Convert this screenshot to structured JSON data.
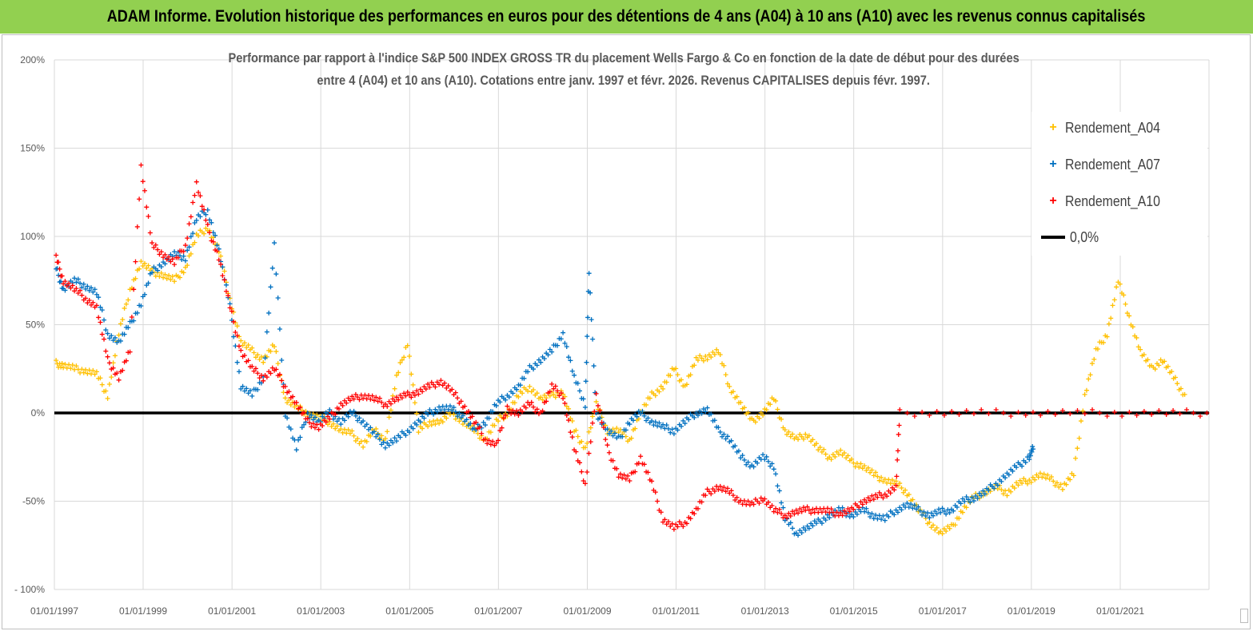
{
  "banner": {
    "title": "ADAM Informe. Evolution historique des performances en euros pour des détentions de 4 ans (A04) à 10 ans (A10) avec les revenus connus capitalisés"
  },
  "colors": {
    "banner_bg": "#92d050",
    "A04": "#ffc000",
    "A07": "#0070c0",
    "A10": "#ff0000",
    "zero_line": "#000000"
  },
  "chart_data": {
    "type": "scatter",
    "title_line1": "Performance par rapport à l'indice S&P 500 INDEX GROSS TR  du placement Wells Fargo & Co en fonction de la date de début pour des durées",
    "title_line2": "entre 4 (A04) et 10 ans (A10). Cotations entre janv. 1997 et févr. 2026. Revenus CAPITALISES depuis févr. 1997.",
    "xlabel": "",
    "ylabel": "",
    "x_range": [
      "1997-01-01",
      "2023-01-01"
    ],
    "ylim": [
      -100,
      200
    ],
    "y_ticks": [
      "200%",
      "150%",
      "100%",
      "50%",
      "0%",
      "-50%",
      "- 100%"
    ],
    "x_ticks": [
      "01/01/1997",
      "01/01/1999",
      "01/01/2001",
      "01/01/2003",
      "01/01/2005",
      "01/01/2007",
      "01/01/2009",
      "01/01/2011",
      "01/01/2013",
      "01/01/2015",
      "01/01/2017",
      "01/01/2019",
      "01/01/2021"
    ],
    "grid": true,
    "legend_position": "top-right",
    "series": [
      {
        "name": "Rendement_A04",
        "marker": "+",
        "points": [
          [
            "1997-01",
            28
          ],
          [
            "1997-03",
            27
          ],
          [
            "1997-06",
            25
          ],
          [
            "1997-09",
            24
          ],
          [
            "1997-12",
            22
          ],
          [
            "1998-03",
            10
          ],
          [
            "1998-06",
            45
          ],
          [
            "1998-09",
            70
          ],
          [
            "1998-12",
            85
          ],
          [
            "1999-03",
            80
          ],
          [
            "1999-06",
            78
          ],
          [
            "1999-09",
            75
          ],
          [
            "1999-12",
            82
          ],
          [
            "2000-03",
            100
          ],
          [
            "2000-06",
            105
          ],
          [
            "2000-09",
            92
          ],
          [
            "2000-12",
            65
          ],
          [
            "2001-03",
            40
          ],
          [
            "2001-06",
            35
          ],
          [
            "2001-09",
            30
          ],
          [
            "2001-12",
            38
          ],
          [
            "2002-03",
            8
          ],
          [
            "2002-06",
            3
          ],
          [
            "2002-09",
            0
          ],
          [
            "2002-12",
            -3
          ],
          [
            "2003-03",
            -5
          ],
          [
            "2003-06",
            -10
          ],
          [
            "2003-09",
            -12
          ],
          [
            "2003-12",
            -18
          ],
          [
            "2004-03",
            -10
          ],
          [
            "2004-06",
            -15
          ],
          [
            "2004-09",
            20
          ],
          [
            "2004-12",
            40
          ],
          [
            "2005-03",
            -10
          ],
          [
            "2005-06",
            -5
          ],
          [
            "2005-09",
            -5
          ],
          [
            "2005-12",
            0
          ],
          [
            "2006-03",
            -5
          ],
          [
            "2006-06",
            -10
          ],
          [
            "2006-09",
            -15
          ],
          [
            "2006-12",
            -5
          ],
          [
            "2007-03",
            0
          ],
          [
            "2007-06",
            10
          ],
          [
            "2007-09",
            15
          ],
          [
            "2007-12",
            8
          ],
          [
            "2008-03",
            10
          ],
          [
            "2008-06",
            12
          ],
          [
            "2008-09",
            -10
          ],
          [
            "2008-12",
            -20
          ],
          [
            "2009-03",
            5
          ],
          [
            "2009-06",
            -10
          ],
          [
            "2009-09",
            -10
          ],
          [
            "2009-12",
            -15
          ],
          [
            "2010-03",
            0
          ],
          [
            "2010-06",
            10
          ],
          [
            "2010-09",
            15
          ],
          [
            "2010-12",
            25
          ],
          [
            "2011-03",
            15
          ],
          [
            "2011-06",
            30
          ],
          [
            "2011-09",
            32
          ],
          [
            "2011-12",
            35
          ],
          [
            "2012-03",
            15
          ],
          [
            "2012-06",
            5
          ],
          [
            "2012-09",
            -5
          ],
          [
            "2012-12",
            0
          ],
          [
            "2013-03",
            8
          ],
          [
            "2013-06",
            -10
          ],
          [
            "2013-09",
            -15
          ],
          [
            "2013-12",
            -12
          ],
          [
            "2014-03",
            -20
          ],
          [
            "2014-06",
            -25
          ],
          [
            "2014-09",
            -22
          ],
          [
            "2014-12",
            -28
          ],
          [
            "2015-03",
            -30
          ],
          [
            "2015-06",
            -35
          ],
          [
            "2015-09",
            -38
          ],
          [
            "2015-12",
            -40
          ],
          [
            "2016-03",
            -45
          ],
          [
            "2016-06",
            -55
          ],
          [
            "2016-09",
            -62
          ],
          [
            "2016-12",
            -68
          ],
          [
            "2017-03",
            -65
          ],
          [
            "2017-06",
            -55
          ],
          [
            "2017-09",
            -48
          ],
          [
            "2017-12",
            -45
          ],
          [
            "2018-03",
            -42
          ],
          [
            "2018-06",
            -45
          ],
          [
            "2018-09",
            -40
          ],
          [
            "2018-12",
            -38
          ],
          [
            "2019-03",
            -35
          ],
          [
            "2019-06",
            -38
          ],
          [
            "2019-09",
            -42
          ],
          [
            "2019-12",
            -35
          ],
          [
            "2020-03",
            10
          ],
          [
            "2020-06",
            35
          ],
          [
            "2020-09",
            45
          ],
          [
            "2020-12",
            75
          ],
          [
            "2021-03",
            55
          ],
          [
            "2021-06",
            35
          ],
          [
            "2021-09",
            25
          ],
          [
            "2021-12",
            30
          ],
          [
            "2022-03",
            20
          ],
          [
            "2022-06",
            10
          ]
        ]
      },
      {
        "name": "Rendement_A07",
        "marker": "+",
        "points": [
          [
            "1997-01",
            82
          ],
          [
            "1997-03",
            70
          ],
          [
            "1997-06",
            75
          ],
          [
            "1997-09",
            72
          ],
          [
            "1997-12",
            68
          ],
          [
            "1998-03",
            45
          ],
          [
            "1998-06",
            40
          ],
          [
            "1998-09",
            50
          ],
          [
            "1998-12",
            62
          ],
          [
            "1999-03",
            80
          ],
          [
            "1999-06",
            85
          ],
          [
            "1999-09",
            90
          ],
          [
            "1999-12",
            88
          ],
          [
            "2000-03",
            110
          ],
          [
            "2000-06",
            115
          ],
          [
            "2000-09",
            92
          ],
          [
            "2000-12",
            60
          ],
          [
            "2001-03",
            15
          ],
          [
            "2001-06",
            10
          ],
          [
            "2001-09",
            20
          ],
          [
            "2001-12",
            95
          ],
          [
            "2002-03",
            0
          ],
          [
            "2002-06",
            -20
          ],
          [
            "2002-09",
            0
          ],
          [
            "2002-12",
            -5
          ],
          [
            "2003-03",
            0
          ],
          [
            "2003-06",
            -5
          ],
          [
            "2003-09",
            0
          ],
          [
            "2003-12",
            -5
          ],
          [
            "2004-03",
            -12
          ],
          [
            "2004-06",
            -18
          ],
          [
            "2004-09",
            -15
          ],
          [
            "2004-12",
            -10
          ],
          [
            "2005-03",
            -5
          ],
          [
            "2005-06",
            0
          ],
          [
            "2005-09",
            3
          ],
          [
            "2005-12",
            2
          ],
          [
            "2006-03",
            -2
          ],
          [
            "2006-06",
            -10
          ],
          [
            "2006-09",
            -5
          ],
          [
            "2006-12",
            5
          ],
          [
            "2007-03",
            10
          ],
          [
            "2007-06",
            15
          ],
          [
            "2007-09",
            25
          ],
          [
            "2007-12",
            30
          ],
          [
            "2008-03",
            35
          ],
          [
            "2008-06",
            45
          ],
          [
            "2008-09",
            20
          ],
          [
            "2008-12",
            5
          ],
          [
            "2009-01",
            80
          ],
          [
            "2009-03",
            0
          ],
          [
            "2009-06",
            -10
          ],
          [
            "2009-09",
            -15
          ],
          [
            "2009-12",
            -5
          ],
          [
            "2010-03",
            0
          ],
          [
            "2010-06",
            -5
          ],
          [
            "2010-09",
            -8
          ],
          [
            "2010-12",
            -10
          ],
          [
            "2011-03",
            -5
          ],
          [
            "2011-06",
            0
          ],
          [
            "2011-09",
            2
          ],
          [
            "2011-12",
            -10
          ],
          [
            "2012-03",
            -15
          ],
          [
            "2012-06",
            -25
          ],
          [
            "2012-09",
            -30
          ],
          [
            "2012-12",
            -25
          ],
          [
            "2013-03",
            -30
          ],
          [
            "2013-06",
            -60
          ],
          [
            "2013-09",
            -68
          ],
          [
            "2013-12",
            -65
          ],
          [
            "2014-03",
            -62
          ],
          [
            "2014-06",
            -58
          ],
          [
            "2014-09",
            -55
          ],
          [
            "2014-12",
            -58
          ],
          [
            "2015-03",
            -55
          ],
          [
            "2015-06",
            -58
          ],
          [
            "2015-09",
            -60
          ],
          [
            "2015-12",
            -55
          ],
          [
            "2016-03",
            -52
          ],
          [
            "2016-06",
            -55
          ],
          [
            "2016-09",
            -58
          ],
          [
            "2016-12",
            -56
          ],
          [
            "2017-03",
            -55
          ],
          [
            "2017-06",
            -50
          ],
          [
            "2017-09",
            -48
          ],
          [
            "2017-12",
            -45
          ],
          [
            "2018-03",
            -40
          ],
          [
            "2018-06",
            -35
          ],
          [
            "2018-09",
            -30
          ],
          [
            "2018-12",
            -25
          ],
          [
            "2019-01",
            -20
          ]
        ]
      },
      {
        "name": "Rendement_A10",
        "marker": "+",
        "points": [
          [
            "1997-01",
            88
          ],
          [
            "1997-03",
            75
          ],
          [
            "1997-06",
            70
          ],
          [
            "1997-09",
            65
          ],
          [
            "1997-12",
            60
          ],
          [
            "1998-03",
            30
          ],
          [
            "1998-06",
            20
          ],
          [
            "1998-09",
            35
          ],
          [
            "1998-12",
            140
          ],
          [
            "1999-03",
            95
          ],
          [
            "1999-06",
            90
          ],
          [
            "1999-09",
            85
          ],
          [
            "1999-12",
            95
          ],
          [
            "2000-03",
            130
          ],
          [
            "2000-06",
            105
          ],
          [
            "2000-09",
            88
          ],
          [
            "2000-12",
            60
          ],
          [
            "2001-03",
            35
          ],
          [
            "2001-06",
            25
          ],
          [
            "2001-09",
            20
          ],
          [
            "2001-12",
            25
          ],
          [
            "2002-03",
            15
          ],
          [
            "2002-06",
            5
          ],
          [
            "2002-09",
            -5
          ],
          [
            "2002-12",
            -8
          ],
          [
            "2003-03",
            -3
          ],
          [
            "2003-06",
            5
          ],
          [
            "2003-09",
            8
          ],
          [
            "2003-12",
            10
          ],
          [
            "2004-03",
            8
          ],
          [
            "2004-06",
            5
          ],
          [
            "2004-09",
            8
          ],
          [
            "2004-12",
            10
          ],
          [
            "2005-03",
            12
          ],
          [
            "2005-06",
            15
          ],
          [
            "2005-09",
            18
          ],
          [
            "2005-12",
            12
          ],
          [
            "2006-03",
            5
          ],
          [
            "2006-06",
            -5
          ],
          [
            "2006-09",
            -15
          ],
          [
            "2006-12",
            -18
          ],
          [
            "2007-03",
            2
          ],
          [
            "2007-06",
            0
          ],
          [
            "2007-09",
            5
          ],
          [
            "2007-12",
            0
          ],
          [
            "2008-03",
            15
          ],
          [
            "2008-06",
            10
          ],
          [
            "2008-09",
            -20
          ],
          [
            "2008-12",
            -40
          ],
          [
            "2009-03",
            10
          ],
          [
            "2009-06",
            -20
          ],
          [
            "2009-09",
            -35
          ],
          [
            "2009-12",
            -38
          ],
          [
            "2010-03",
            -25
          ],
          [
            "2010-06",
            -40
          ],
          [
            "2010-09",
            -60
          ],
          [
            "2010-12",
            -65
          ],
          [
            "2011-03",
            -62
          ],
          [
            "2011-06",
            -55
          ],
          [
            "2011-09",
            -45
          ],
          [
            "2011-12",
            -42
          ],
          [
            "2012-03",
            -45
          ],
          [
            "2012-06",
            -50
          ],
          [
            "2012-09",
            -52
          ],
          [
            "2012-12",
            -48
          ],
          [
            "2013-03",
            -55
          ],
          [
            "2013-06",
            -58
          ],
          [
            "2013-09",
            -56
          ],
          [
            "2013-12",
            -55
          ],
          [
            "2014-03",
            -55
          ],
          [
            "2014-06",
            -56
          ],
          [
            "2014-09",
            -57
          ],
          [
            "2014-12",
            -55
          ],
          [
            "2015-03",
            -50
          ],
          [
            "2015-06",
            -48
          ],
          [
            "2015-09",
            -46
          ],
          [
            "2015-12",
            -42
          ],
          [
            "2016-01",
            0
          ],
          [
            "2017-01",
            0
          ],
          [
            "2018-01",
            0
          ],
          [
            "2019-01",
            0
          ],
          [
            "2020-01",
            0
          ],
          [
            "2021-01",
            0
          ],
          [
            "2022-01",
            0
          ],
          [
            "2022-12",
            0
          ]
        ]
      }
    ],
    "reference_line": {
      "name": "0,0%",
      "y": 0
    }
  }
}
